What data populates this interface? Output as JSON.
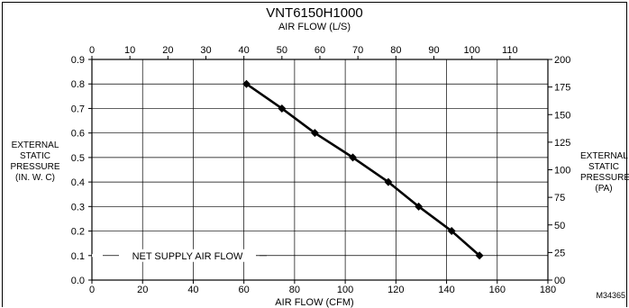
{
  "chart_data": {
    "type": "line",
    "title": "VNT6150H1000",
    "subtitle": "AIR FLOW (L/S)",
    "xlabel": "AIR FLOW (CFM)",
    "ylabel_left": [
      "EXTERNAL",
      "STATIC",
      "PRESSURE",
      "(IN. W. C)"
    ],
    "ylabel_right": [
      "EXTERNAL",
      "STATIC",
      "PRESSURE",
      "(PA)"
    ],
    "xlim": [
      0,
      180
    ],
    "ylim": [
      0,
      0.9
    ],
    "x_top_lim": [
      0,
      120
    ],
    "y_right_lim": [
      0,
      200
    ],
    "x_ticks": [
      "0",
      "20",
      "40",
      "60",
      "80",
      "100",
      "120",
      "140",
      "160",
      "180"
    ],
    "x_top_ticks": [
      "0",
      "10",
      "20",
      "30",
      "40",
      "50",
      "60",
      "70",
      "80",
      "90",
      "100",
      "110"
    ],
    "y_ticks": [
      "0.0",
      "0.1",
      "0.2",
      "0.3",
      "0.4",
      "0.5",
      "0.6",
      "0.7",
      "0.8",
      "0.9"
    ],
    "y_right_ticks": [
      "00",
      "25",
      "50",
      "75",
      "100",
      "125",
      "150",
      "175",
      "200"
    ],
    "grid": true,
    "series": [
      {
        "x": [
          61,
          75,
          88,
          103,
          117,
          129,
          142,
          153
        ],
        "y": [
          0.8,
          0.7,
          0.6,
          0.5,
          0.4,
          0.3,
          0.2,
          0.1
        ]
      }
    ],
    "annotation": "NET SUPPLY AIR FLOW",
    "figure_id": "M34365"
  }
}
